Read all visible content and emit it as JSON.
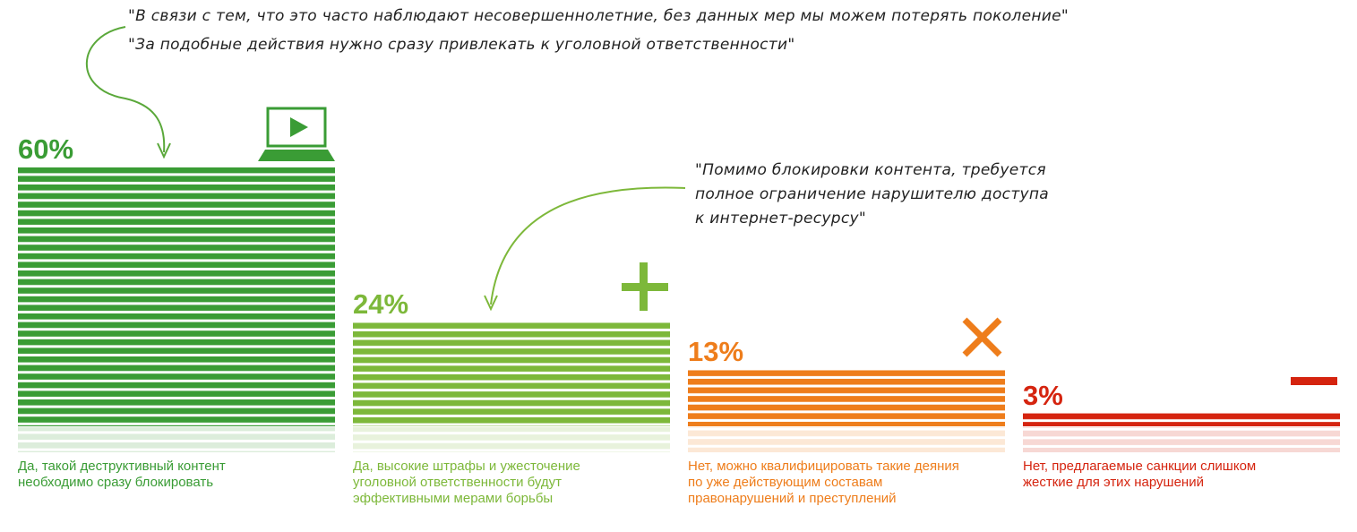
{
  "chart_data": {
    "type": "bar",
    "categories": [
      "Да, такой деструктивный контент\nнеобходимо сразу блокировать",
      "Да, высокие штрафы и ужесточение\nуголовной ответственности будут\nэффективными мерами борьбы",
      "Нет, можно квалифицировать такие деяния\nпо уже действующим составам\nправонарушений и преступлений",
      "Нет, предлагаемые санкции слишком\nжесткие для этих нарушений"
    ],
    "values": [
      60,
      24,
      13,
      3
    ],
    "value_labels": [
      "60%",
      "24%",
      "13%",
      "3%"
    ],
    "colors": [
      "#3a9c35",
      "#7db83a",
      "#ee7d1b",
      "#d5240f"
    ],
    "annotations": [
      "\"В связи с тем, что это часто наблюдают несовершеннолетние, без данных мер мы можем потерять поколение\"",
      "\"За подобные действия нужно сразу привлекать к уголовной ответственности\"",
      "\"Помимо блокировки контента, требуется\nполное ограничение нарушителю доступа\nк интернет-ресурсу\""
    ]
  }
}
